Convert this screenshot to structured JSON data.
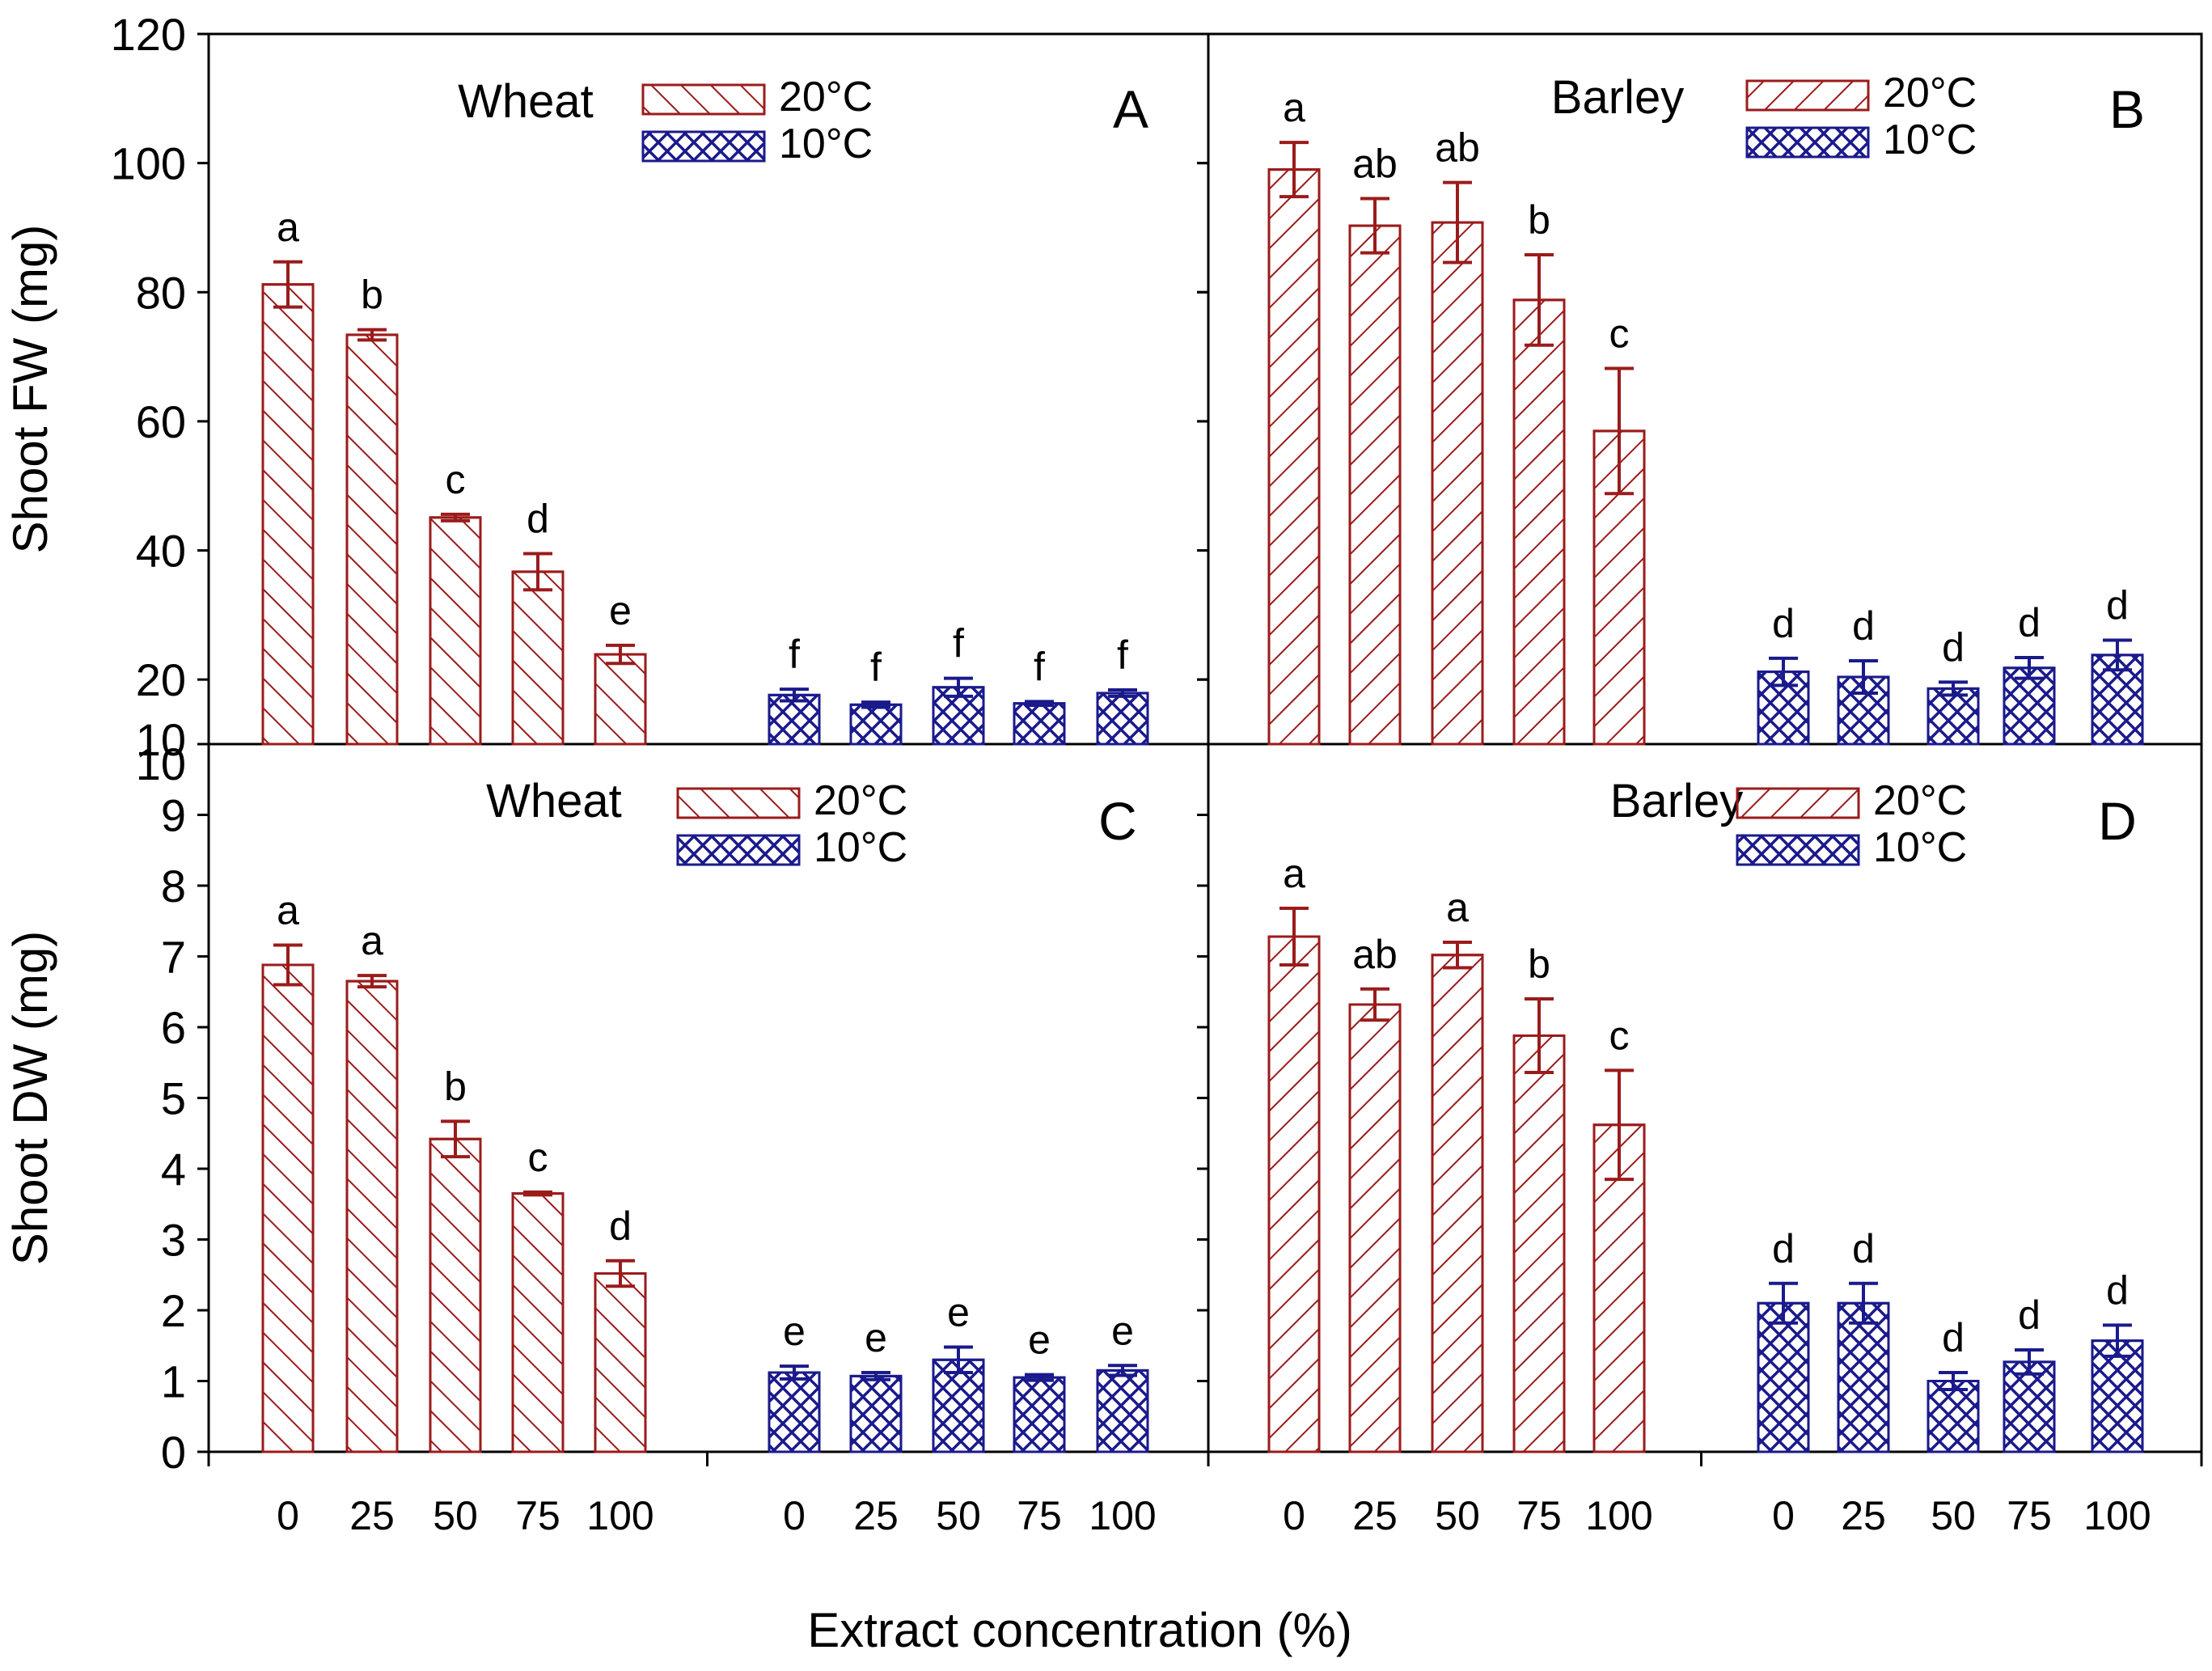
{
  "chart_data": {
    "type": "bar",
    "xlabel": "Extract concentration (%)",
    "categories": [
      "0",
      "25",
      "50",
      "75",
      "100"
    ],
    "colors": {
      "t20": "#9b1b1b",
      "t10": "#1a1a8c"
    },
    "panels": [
      {
        "id": "A",
        "letter": "A",
        "crop": "Wheat",
        "ylabel": "Shoot FW (mg)",
        "ylim": [
          10,
          120
        ],
        "yticks": [
          "10",
          "20",
          "40",
          "60",
          "80",
          "100",
          "120"
        ],
        "series": [
          {
            "name": "20°C",
            "values": [
              81.2,
              73.4,
              45.1,
              36.7,
              23.9
            ],
            "errors": [
              3.5,
              0.8,
              0.5,
              2.8,
              1.4
            ],
            "labels": [
              "a",
              "b",
              "c",
              "d",
              "e"
            ]
          },
          {
            "name": "10°C",
            "values": [
              17.6,
              16.1,
              18.8,
              16.3,
              17.9
            ],
            "errors": [
              0.9,
              0.4,
              1.4,
              0.3,
              0.5
            ],
            "labels": [
              "f",
              "f",
              "f",
              "f",
              "f"
            ]
          }
        ]
      },
      {
        "id": "B",
        "letter": "B",
        "crop": "Barley",
        "ylabel": "",
        "ylim": [
          10,
          120
        ],
        "yticks": [],
        "series": [
          {
            "name": "20°C",
            "values": [
              99.0,
              90.3,
              90.8,
              78.8,
              58.5
            ],
            "errors": [
              4.2,
              4.2,
              6.2,
              7.0,
              9.7
            ],
            "labels": [
              "a",
              "ab",
              "ab",
              "b",
              "c"
            ]
          },
          {
            "name": "10°C",
            "values": [
              21.2,
              20.4,
              18.6,
              21.8,
              23.8
            ],
            "errors": [
              2.1,
              2.5,
              1.0,
              1.6,
              2.3
            ],
            "labels": [
              "d",
              "d",
              "d",
              "d",
              "d"
            ]
          }
        ]
      },
      {
        "id": "C",
        "letter": "C",
        "crop": "Wheat",
        "ylabel": "Shoot DW (mg)",
        "ylim": [
          0,
          10
        ],
        "yticks": [
          "0",
          "1",
          "2",
          "3",
          "4",
          "5",
          "6",
          "7",
          "8",
          "9",
          "10"
        ],
        "series": [
          {
            "name": "20°C",
            "values": [
              6.88,
              6.65,
              4.42,
              3.65,
              2.52
            ],
            "errors": [
              0.28,
              0.08,
              0.25,
              0.02,
              0.18
            ],
            "labels": [
              "a",
              "a",
              "b",
              "c",
              "d"
            ]
          },
          {
            "name": "10°C",
            "values": [
              1.12,
              1.07,
              1.3,
              1.05,
              1.15
            ],
            "errors": [
              0.09,
              0.05,
              0.18,
              0.04,
              0.07
            ],
            "labels": [
              "e",
              "e",
              "e",
              "e",
              "e"
            ]
          }
        ]
      },
      {
        "id": "D",
        "letter": "D",
        "crop": "Barley",
        "ylabel": "",
        "ylim": [
          0,
          10
        ],
        "yticks": [],
        "series": [
          {
            "name": "20°C",
            "values": [
              7.28,
              6.32,
              7.02,
              5.88,
              4.62
            ],
            "errors": [
              0.4,
              0.22,
              0.18,
              0.52,
              0.77
            ],
            "labels": [
              "a",
              "ab",
              "a",
              "b",
              "c"
            ]
          },
          {
            "name": "10°C",
            "values": [
              2.1,
              2.1,
              1.0,
              1.27,
              1.57
            ],
            "errors": [
              0.28,
              0.28,
              0.12,
              0.17,
              0.22
            ],
            "labels": [
              "d",
              "d",
              "d",
              "d",
              "d"
            ]
          }
        ]
      }
    ]
  }
}
